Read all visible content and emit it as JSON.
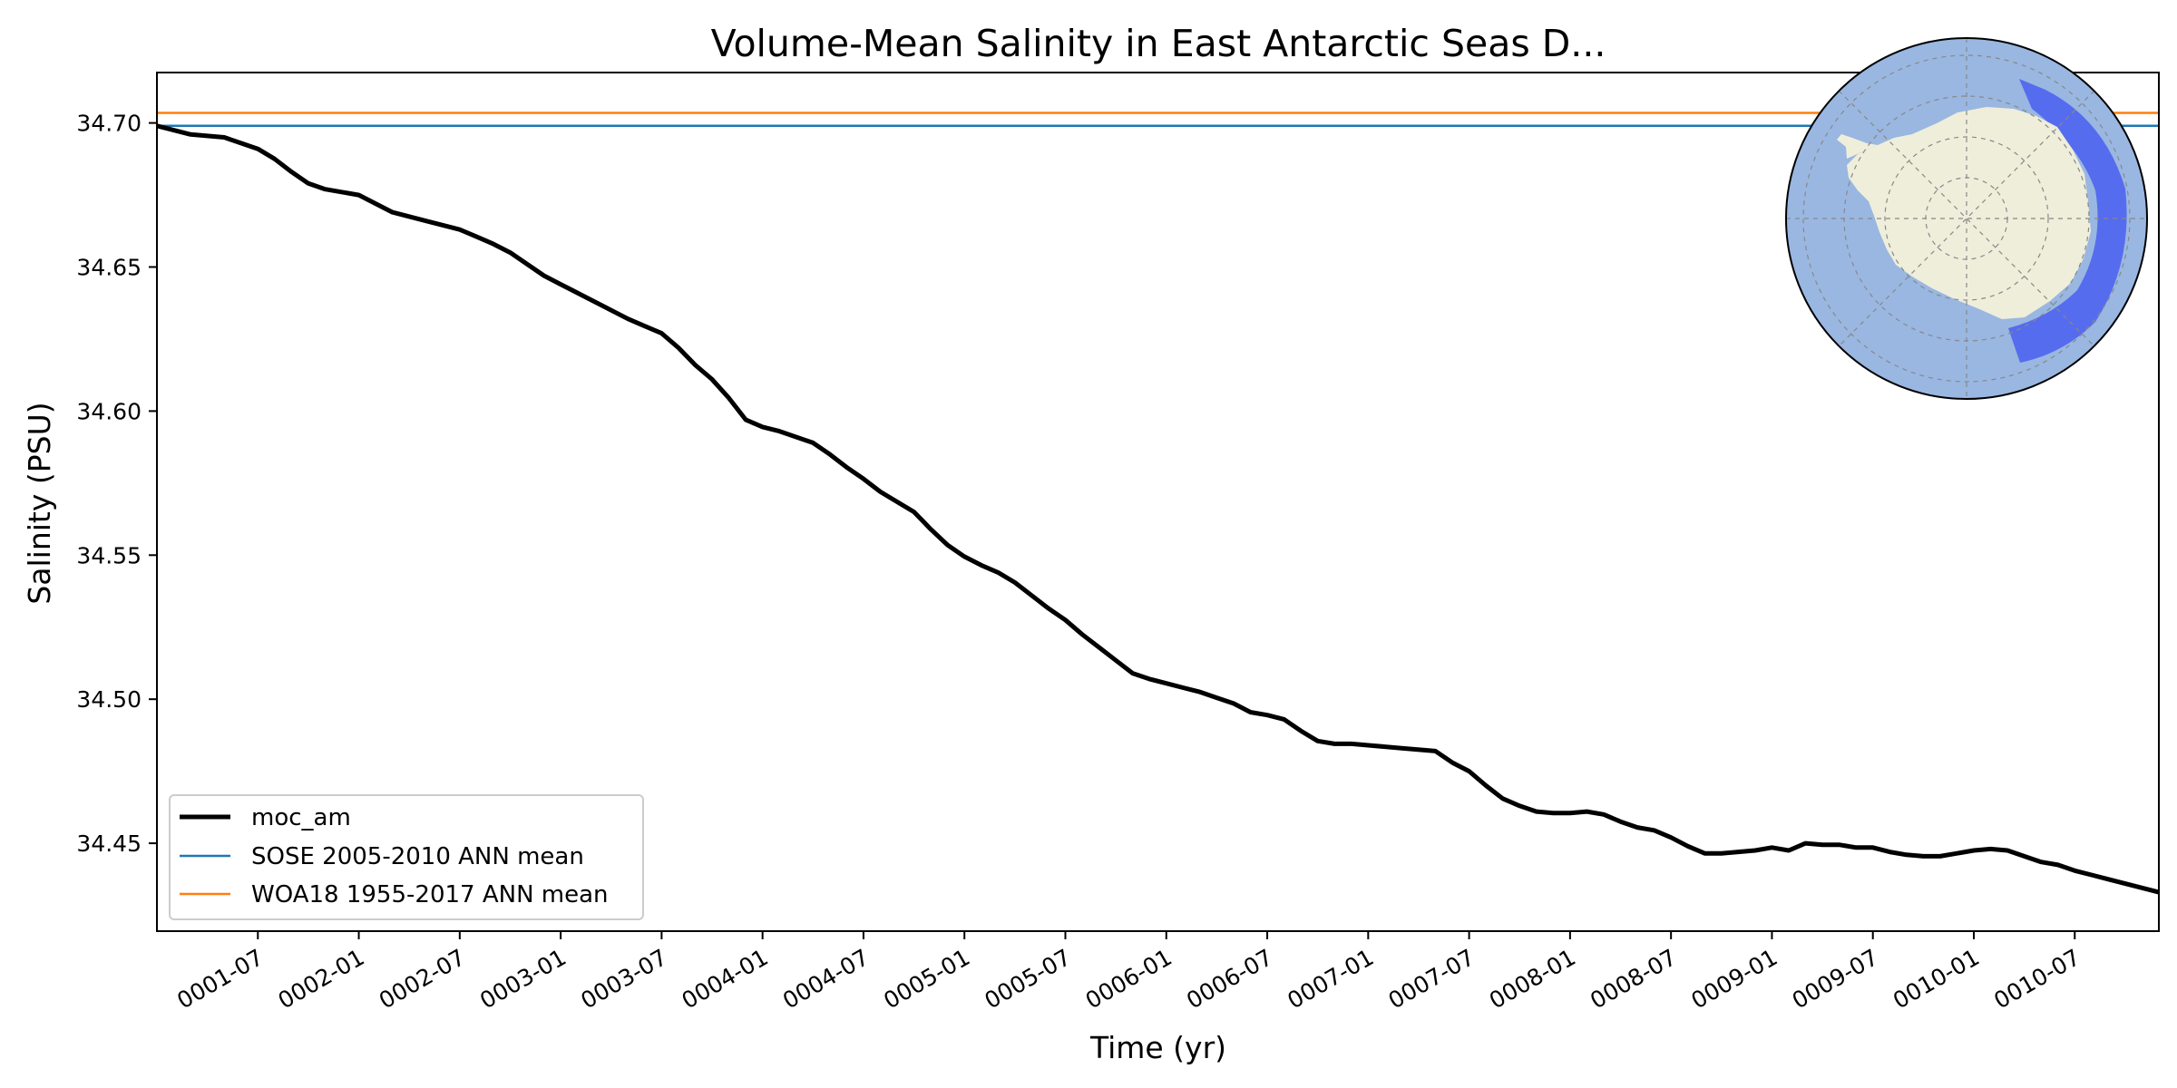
{
  "chart_data": {
    "type": "line",
    "title": "Volume-Mean Salinity in East Antarctic Seas D...",
    "xlabel": "Time (yr)",
    "ylabel": "Salinity (PSU)",
    "xlim": [
      0.0,
      119.0
    ],
    "ylim": [
      34.4195,
      34.7175
    ],
    "grid": false,
    "legend_location": "lower-left",
    "x_ticks": [
      {
        "x": 6,
        "label": "0001-07"
      },
      {
        "x": 12,
        "label": "0002-01"
      },
      {
        "x": 18,
        "label": "0002-07"
      },
      {
        "x": 24,
        "label": "0003-01"
      },
      {
        "x": 30,
        "label": "0003-07"
      },
      {
        "x": 36,
        "label": "0004-01"
      },
      {
        "x": 42,
        "label": "0004-07"
      },
      {
        "x": 48,
        "label": "0005-01"
      },
      {
        "x": 54,
        "label": "0005-07"
      },
      {
        "x": 60,
        "label": "0006-01"
      },
      {
        "x": 66,
        "label": "0006-07"
      },
      {
        "x": 72,
        "label": "0007-01"
      },
      {
        "x": 78,
        "label": "0007-07"
      },
      {
        "x": 84,
        "label": "0008-01"
      },
      {
        "x": 90,
        "label": "0008-07"
      },
      {
        "x": 96,
        "label": "0009-01"
      },
      {
        "x": 102,
        "label": "0009-07"
      },
      {
        "x": 108,
        "label": "0010-01"
      },
      {
        "x": 114,
        "label": "0010-07"
      }
    ],
    "y_ticks": [
      {
        "y": 34.45,
        "label": "34.45"
      },
      {
        "y": 34.5,
        "label": "34.50"
      },
      {
        "y": 34.55,
        "label": "34.55"
      },
      {
        "y": 34.6,
        "label": "34.60"
      },
      {
        "y": 34.65,
        "label": "34.65"
      },
      {
        "y": 34.7,
        "label": "34.70"
      }
    ],
    "series": [
      {
        "name": "moc_am",
        "color": "#000000",
        "x": [
          0,
          2,
          3,
          4,
          5,
          6,
          7,
          8,
          9,
          10,
          12,
          13,
          14,
          16,
          17,
          18,
          19,
          20,
          21,
          23,
          24,
          25,
          26,
          28,
          29,
          30,
          31,
          32,
          33,
          34,
          35,
          36,
          37,
          39,
          40,
          41,
          42,
          43,
          44,
          45,
          46,
          47,
          48,
          49,
          50,
          51,
          52,
          53,
          54,
          55,
          56,
          57,
          58,
          59,
          60,
          61,
          62,
          63,
          64,
          65,
          66,
          67,
          68,
          69,
          70,
          71,
          72,
          73,
          74,
          76,
          77,
          78,
          79,
          80,
          81,
          82,
          83,
          84,
          85,
          86,
          87,
          88,
          89,
          90,
          91,
          92,
          93,
          94,
          95,
          96,
          97,
          98,
          99,
          100,
          101,
          102,
          103,
          104,
          105,
          106,
          107,
          108,
          109,
          110,
          111,
          112,
          113,
          114,
          115,
          116,
          117,
          118,
          119
        ],
        "y": [
          34.699,
          34.696,
          34.6955,
          34.695,
          34.693,
          34.691,
          34.6875,
          34.683,
          34.679,
          34.677,
          34.675,
          34.672,
          34.669,
          34.666,
          34.6645,
          34.663,
          34.6605,
          34.658,
          34.655,
          34.647,
          34.644,
          34.641,
          34.638,
          34.632,
          34.6295,
          34.627,
          34.622,
          34.616,
          34.611,
          34.6045,
          34.597,
          34.5945,
          34.593,
          34.589,
          34.585,
          34.5805,
          34.5765,
          34.572,
          34.5685,
          34.565,
          34.559,
          34.5535,
          34.5495,
          34.5465,
          34.544,
          34.5405,
          34.536,
          34.5315,
          34.5275,
          34.5225,
          34.518,
          34.5135,
          34.509,
          34.507,
          34.5055,
          34.504,
          34.5025,
          34.5005,
          34.4985,
          34.4955,
          34.4945,
          34.493,
          34.489,
          34.4855,
          34.4845,
          34.4845,
          34.484,
          34.4835,
          34.483,
          34.482,
          34.478,
          34.475,
          34.47,
          34.4655,
          34.463,
          34.461,
          34.4605,
          34.4605,
          34.461,
          34.46,
          34.4575,
          34.4555,
          34.4545,
          34.452,
          34.449,
          34.4465,
          34.4465,
          34.447,
          34.4475,
          34.4485,
          34.4475,
          34.45,
          34.4495,
          34.4495,
          34.4485,
          34.4485,
          34.447,
          34.446,
          34.4455,
          34.4455,
          34.4465,
          34.4475,
          34.448,
          34.4475,
          34.4455,
          34.4435,
          34.4425,
          34.4405,
          34.439,
          34.4375,
          34.436,
          34.4345,
          34.433
        ]
      },
      {
        "name": "SOSE 2005-2010 ANN mean",
        "color": "#1f77b4",
        "constant": 34.699
      },
      {
        "name": "WOA18 1955-2017 ANN mean",
        "color": "#ff7f0e",
        "constant": 34.7035
      }
    ],
    "inset_map": {
      "ocean_color": "#99b7e1",
      "land_color": "#efeedb",
      "region_color": "#4a5ff0"
    }
  }
}
